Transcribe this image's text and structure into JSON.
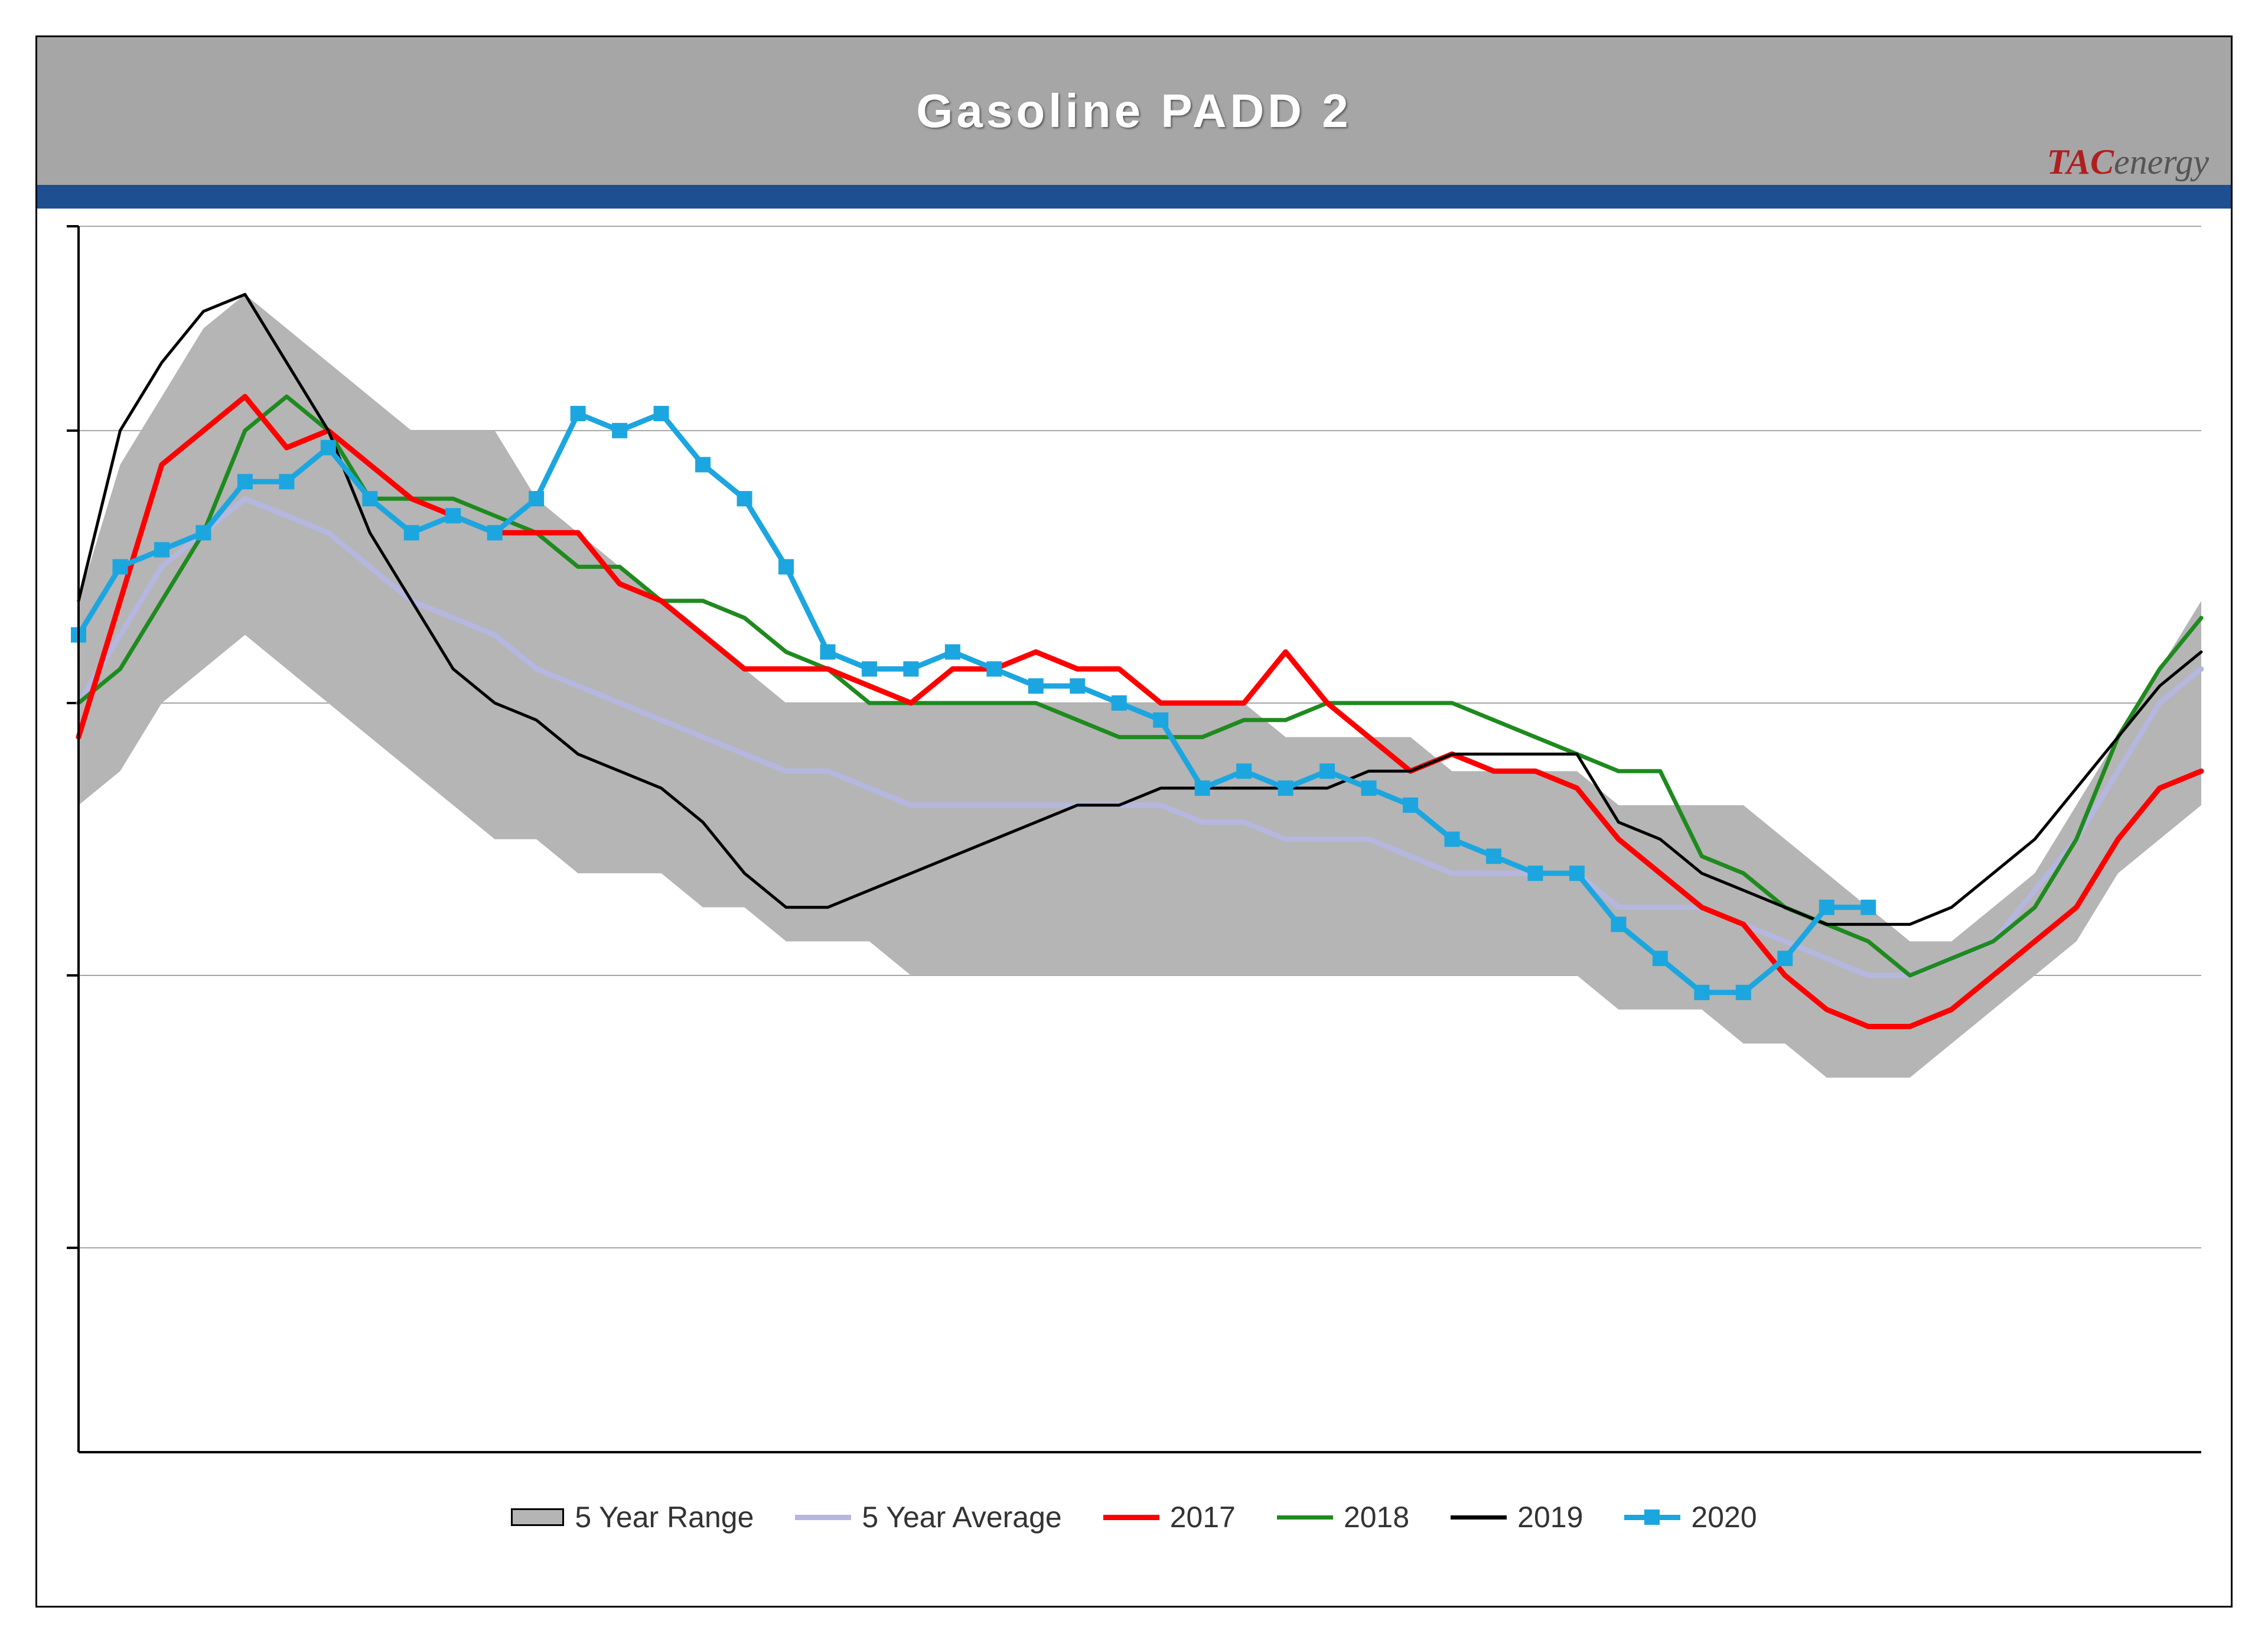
{
  "title": "Gasoline  PADD  2",
  "logo": {
    "part1": "TAC",
    "part2": "energy"
  },
  "chart": {
    "type": "line+area",
    "background_color": "#ffffff",
    "title_bar_color": "#a6a6a6",
    "title_text_color": "#ffffff",
    "title_fontsize": 80,
    "blue_strip_color": "#1d4f91",
    "grid_color": "#a6a6a6",
    "border_color": "#000000",
    "xlim": [
      1,
      52
    ],
    "ylim": [
      30,
      66
    ],
    "ygrid_values": [
      36,
      44,
      52,
      60,
      66
    ],
    "range_fill_color": "#b5b5b5",
    "series": {
      "range_high": [
        55,
        59,
        61,
        63,
        64,
        63,
        62,
        61,
        60,
        60,
        60,
        58,
        57,
        56,
        55,
        54,
        53,
        52,
        52,
        52,
        52,
        52,
        52,
        52,
        52,
        52,
        52,
        52,
        52,
        51,
        51,
        51,
        51,
        50,
        50,
        50,
        50,
        49,
        49,
        49,
        49,
        48,
        47,
        46,
        45,
        45,
        46,
        47,
        49,
        51,
        53,
        55
      ],
      "range_low": [
        49,
        50,
        52,
        53,
        54,
        53,
        52,
        51,
        50,
        49,
        48,
        48,
        47,
        47,
        47,
        46,
        46,
        45,
        45,
        45,
        44,
        44,
        44,
        44,
        44,
        44,
        44,
        44,
        44,
        44,
        44,
        44,
        44,
        44,
        44,
        44,
        44,
        43,
        43,
        43,
        42,
        42,
        41,
        41,
        41,
        42,
        43,
        44,
        45,
        47,
        48,
        49
      ],
      "avg": [
        52,
        54,
        56,
        57,
        58,
        57.5,
        57,
        56,
        55,
        54.5,
        54,
        53,
        52.5,
        52,
        51.5,
        51,
        50.5,
        50,
        50,
        49.5,
        49,
        49,
        49,
        49,
        49,
        49,
        49,
        48.5,
        48.5,
        48,
        48,
        48,
        47.5,
        47,
        47,
        47,
        47,
        46,
        46,
        46,
        45.5,
        45,
        44.5,
        44,
        44,
        44.5,
        45,
        46.5,
        48,
        50,
        52,
        53
      ],
      "y2017": [
        51,
        55,
        59,
        60,
        61,
        59.5,
        60,
        59,
        58,
        57.5,
        57,
        57,
        57,
        55.5,
        55,
        54,
        53,
        53,
        53,
        52.5,
        52,
        53,
        53,
        53.5,
        53,
        53,
        52,
        52,
        52,
        53.5,
        52,
        51,
        50,
        50.5,
        50,
        50,
        49.5,
        48,
        47,
        46,
        45.5,
        44,
        43,
        42.5,
        42.5,
        43,
        44,
        45,
        46,
        48,
        49.5,
        50
      ],
      "y2018": [
        52,
        53,
        55,
        57,
        60,
        61,
        60,
        58,
        58,
        58,
        57.5,
        57,
        56,
        56,
        55,
        55,
        54.5,
        53.5,
        53,
        52,
        52,
        52,
        52,
        52,
        51.5,
        51,
        51,
        51,
        51.5,
        51.5,
        52,
        52,
        52,
        52,
        51.5,
        51,
        50.5,
        50,
        50,
        47.5,
        47,
        46,
        45.5,
        45,
        44,
        44.5,
        45,
        46,
        48,
        51,
        53,
        54.5
      ],
      "y2019": [
        55,
        60,
        62,
        63.5,
        64,
        62,
        60,
        57,
        55,
        53,
        52,
        51.5,
        50.5,
        50,
        49.5,
        48.5,
        47,
        46,
        46,
        46.5,
        47,
        47.5,
        48,
        48.5,
        49,
        49,
        49.5,
        49.5,
        49.5,
        49.5,
        49.5,
        50,
        50,
        50.5,
        50.5,
        50.5,
        50.5,
        48.5,
        48,
        47,
        46.5,
        46,
        45.5,
        45.5,
        45.5,
        46,
        47,
        48,
        49.5,
        51,
        52.5,
        53.5
      ],
      "y2020": [
        54,
        56,
        56.5,
        57,
        58.5,
        58.5,
        59.5,
        58,
        57,
        57.5,
        57,
        58,
        60.5,
        60,
        60.5,
        59,
        58,
        56,
        53.5,
        53,
        53,
        53.5,
        53,
        52.5,
        52.5,
        52,
        51.5,
        49.5,
        50,
        49.5,
        50,
        49.5,
        49,
        48,
        47.5,
        47,
        47,
        45.5,
        44.5,
        43.5,
        43.5,
        44.5,
        46,
        46
      ]
    },
    "styles": {
      "range": {
        "fill": "#b5b5b5",
        "stroke": "#000000",
        "stroke_width": 1
      },
      "avg": {
        "stroke": "#b5b7e0",
        "stroke_width": 9
      },
      "y2017": {
        "stroke": "#ff0000",
        "stroke_width": 9
      },
      "y2018": {
        "stroke": "#1f8a1f",
        "stroke_width": 7
      },
      "y2019": {
        "stroke": "#000000",
        "stroke_width": 5
      },
      "y2020": {
        "stroke": "#1ca6e0",
        "stroke_width": 9,
        "marker": "square",
        "marker_size": 24,
        "marker_fill": "#1ca6e0"
      }
    },
    "legend": [
      {
        "key": "range",
        "label": "5 Year Range"
      },
      {
        "key": "avg",
        "label": "5 Year Average"
      },
      {
        "key": "y2017",
        "label": "2017"
      },
      {
        "key": "y2018",
        "label": "2018"
      },
      {
        "key": "y2019",
        "label": "2019"
      },
      {
        "key": "y2020",
        "label": "2020"
      }
    ],
    "legend_fontsize": 50
  }
}
